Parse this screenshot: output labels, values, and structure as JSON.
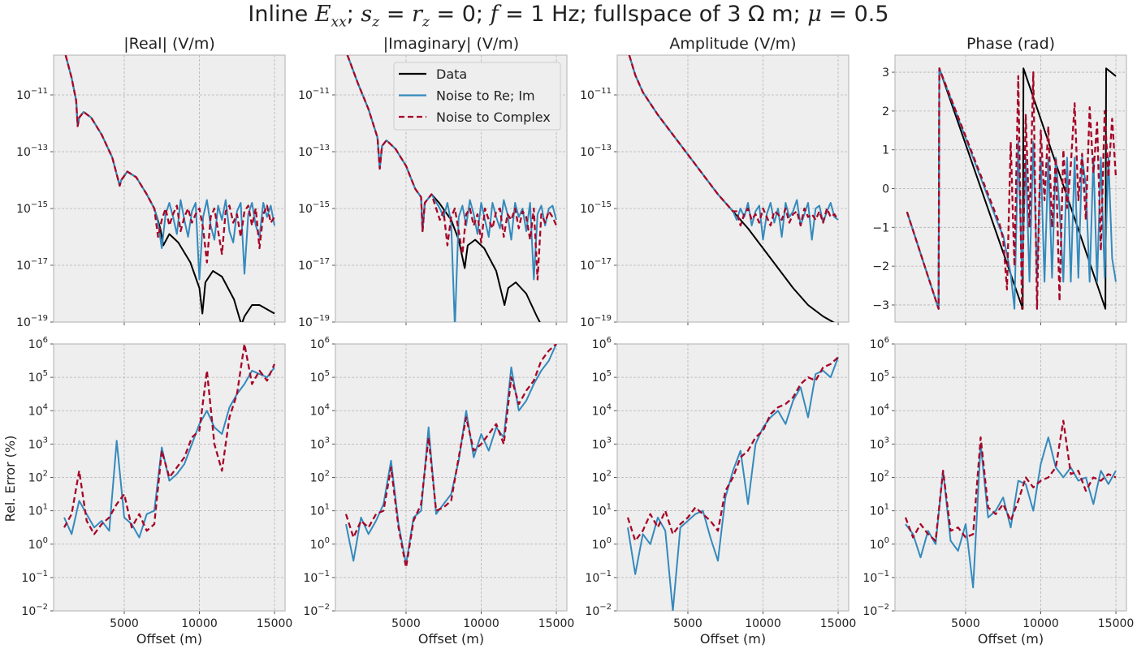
{
  "figure": {
    "title_parts": [
      {
        "t": "Inline "
      },
      {
        "t": "E",
        "i": 1
      },
      {
        "t": "xx",
        "sub": 1,
        "i": 1
      },
      {
        "t": "; "
      },
      {
        "t": "s",
        "i": 1
      },
      {
        "t": "z",
        "sub": 1,
        "i": 1
      },
      {
        "t": " = "
      },
      {
        "t": "r",
        "i": 1
      },
      {
        "t": "z",
        "sub": 1,
        "i": 1
      },
      {
        "t": " = 0; "
      },
      {
        "t": "f",
        "i": 1
      },
      {
        "t": " = 1 Hz; fullspace of 3 Ω m; "
      },
      {
        "t": "μ",
        "i": 1
      },
      {
        "t": " = 0.5"
      }
    ]
  },
  "chart_data": {
    "type": "line",
    "xlabel": "Offset (m)",
    "ylabel_bottom_left": "Rel. Error (%)",
    "xlim": [
      300,
      15700
    ],
    "xticks": [
      5000,
      10000,
      15000
    ],
    "xtick_labels": [
      "5000",
      "10000",
      "15000"
    ],
    "colors": {
      "data": "#000000",
      "reim": "#348abd",
      "complex": "#a60628",
      "bg": "#eeeeee",
      "grid": "#b2b2b2"
    },
    "legend": {
      "location": "top-right of |Imaginary| panel",
      "entries": [
        "Data",
        "Noise to Re; Im",
        "Noise to Complex"
      ]
    },
    "top_log_yticks": [
      -11,
      -13,
      -15,
      -17,
      -19
    ],
    "bottom_log_yticks": [
      -2,
      -1,
      0,
      1,
      2,
      3,
      4,
      5,
      6
    ],
    "phase_yticks": [
      3,
      2,
      1,
      0,
      -1,
      -2,
      -3
    ],
    "panels_top": [
      {
        "title": "|Real| (V/m)",
        "yscale": "log",
        "ylim_log10": [
          -19,
          -9.6
        ],
        "data": {
          "x": [
            1100,
            1500,
            1800,
            1900,
            2000,
            2300,
            2800,
            3500,
            4200,
            4700,
            4800,
            5200,
            5800,
            6500,
            7000,
            7400,
            7600,
            8000,
            8600,
            9400,
            10000,
            10200,
            10400,
            10900,
            11500,
            12300,
            12800,
            13000,
            13500,
            14000,
            15000
          ],
          "y_log10": [
            -9.6,
            -10.4,
            -11.2,
            -12.1,
            -11.8,
            -11.6,
            -11.8,
            -12.4,
            -13.2,
            -14.2,
            -14.0,
            -13.7,
            -13.9,
            -14.5,
            -15.0,
            -15.7,
            -16.3,
            -15.9,
            -16.2,
            -16.9,
            -17.8,
            -18.7,
            -17.6,
            -17.2,
            -17.4,
            -18.2,
            -19.1,
            -18.8,
            -18.4,
            -18.4,
            -18.7
          ]
        },
        "noise_start": 7000,
        "noise_x0": 7250,
        "noise_dx": 250,
        "reim_y_log10": [
          -15.5,
          -16.4,
          -15.2,
          -14.8,
          -15.3,
          -15.9,
          -14.7,
          -15.4,
          -16.0,
          -15.1,
          -14.8,
          -17.5,
          -15.3,
          -14.7,
          -15.6,
          -16.1,
          -14.9,
          -15.4,
          -14.7,
          -15.8,
          -16.2,
          -15.1,
          -14.8,
          -17.3,
          -15.2,
          -14.8,
          -15.6,
          -16.0,
          -14.8,
          -15.3,
          -14.9,
          -15.6
        ],
        "complex_y_log10": [
          -16.0,
          -15.4,
          -15.0,
          -15.6,
          -15.2,
          -14.9,
          -15.8,
          -15.3,
          -15.0,
          -15.5,
          -15.2,
          -15.0,
          -15.7,
          -16.9,
          -15.3,
          -15.0,
          -15.8,
          -16.6,
          -15.1,
          -14.9,
          -15.5,
          -15.2,
          -16.0,
          -15.1,
          -14.9,
          -15.6,
          -15.0,
          -16.4,
          -15.2,
          -14.9,
          -15.5,
          -15.3
        ]
      },
      {
        "title": "|Imaginary| (V/m)",
        "yscale": "log",
        "ylim_log10": [
          -19,
          -9.6
        ],
        "data": {
          "x": [
            1100,
            1800,
            2500,
            3100,
            3250,
            3400,
            3700,
            4300,
            5000,
            5600,
            6000,
            6100,
            6250,
            6700,
            7200,
            8000,
            8500,
            8900,
            9100,
            9600,
            10200,
            11000,
            11550,
            11800,
            12300,
            13000,
            13700,
            14000
          ],
          "y_log10": [
            -9.6,
            -10.6,
            -11.5,
            -12.5,
            -13.6,
            -12.8,
            -12.6,
            -12.9,
            -13.5,
            -14.3,
            -14.6,
            -15.8,
            -14.8,
            -14.5,
            -14.8,
            -15.4,
            -16.1,
            -17.1,
            -16.3,
            -16.1,
            -16.4,
            -17.2,
            -18.4,
            -17.8,
            -17.6,
            -18.0,
            -18.8,
            -19.1
          ]
        },
        "noise_start": 7000,
        "noise_x0": 7250,
        "noise_dx": 250,
        "reim_y_log10": [
          -15.0,
          -15.3,
          -14.8,
          -15.5,
          -19.2,
          -15.3,
          -14.9,
          -15.6,
          -14.7,
          -15.2,
          -15.9,
          -14.8,
          -15.4,
          -16.0,
          -14.8,
          -15.3,
          -15.7,
          -14.7,
          -15.2,
          -16.1,
          -14.8,
          -15.3,
          -15.0,
          -15.8,
          -14.8,
          -17.5,
          -15.2,
          -14.9,
          -15.6,
          -15.0,
          -14.9,
          -15.4
        ],
        "complex_y_log10": [
          -15.4,
          -15.1,
          -16.3,
          -15.3,
          -15.0,
          -15.8,
          -16.6,
          -15.2,
          -15.0,
          -15.6,
          -15.2,
          -16.2,
          -15.0,
          -15.4,
          -15.7,
          -15.1,
          -15.0,
          -16.0,
          -15.2,
          -15.4,
          -15.0,
          -15.7,
          -15.1,
          -15.3,
          -16.1,
          -15.0,
          -17.5,
          -15.2,
          -15.5,
          -15.1,
          -15.3,
          -15.6
        ]
      },
      {
        "title": "Amplitude (V/m)",
        "yscale": "log",
        "ylim_log10": [
          -19,
          -9.6
        ],
        "data": {
          "x": [
            1100,
            1500,
            2000,
            2500,
            3000,
            4000,
            5000,
            6000,
            7000,
            8000,
            9000,
            10000,
            11000,
            12000,
            13000,
            14000,
            15000
          ],
          "y_log10": [
            -9.6,
            -10.3,
            -10.9,
            -11.3,
            -11.7,
            -12.4,
            -13.1,
            -13.8,
            -14.5,
            -15.1,
            -15.7,
            -16.4,
            -17.1,
            -17.8,
            -18.4,
            -18.8,
            -19.1
          ]
        },
        "noise_start": 8000,
        "noise_x0": 8250,
        "noise_dx": 250,
        "reim_y_log10": [
          -15.4,
          -15.0,
          -15.3,
          -14.8,
          -15.6,
          -15.1,
          -14.9,
          -16.1,
          -15.2,
          -14.8,
          -15.5,
          -15.0,
          -16.0,
          -14.8,
          -15.3,
          -15.1,
          -14.7,
          -15.6,
          -15.2,
          -14.8,
          -16.1,
          -15.0,
          -14.9,
          -15.5,
          -15.1,
          -14.8,
          -15.3,
          -15.4
        ],
        "complex_y_log10": [
          -15.1,
          -15.6,
          -15.2,
          -15.0,
          -15.4,
          -15.2,
          -15.5,
          -15.0,
          -15.3,
          -15.6,
          -15.1,
          -15.2,
          -15.4,
          -15.0,
          -15.5,
          -15.2,
          -15.1,
          -15.6,
          -15.0,
          -15.3,
          -15.2,
          -15.4,
          -15.1,
          -15.5,
          -15.0,
          -15.3,
          -15.2,
          -15.4
        ]
      },
      {
        "title": "Phase (rad)",
        "yscale": "linear",
        "ylim": [
          -3.44,
          3.44
        ],
        "data": {
          "x": [
            1100,
            3200,
            3250,
            8800,
            8850,
            14300,
            14350,
            15000
          ],
          "y": [
            -0.6,
            -3.1,
            3.1,
            -3.1,
            3.1,
            -3.1,
            3.1,
            2.9
          ]
        },
        "noise_start": 7000,
        "noise_x0": 7250,
        "noise_dx": 250,
        "reim_y": [
          -1.0,
          -1.2,
          -1.7,
          -2.2,
          -3.1,
          1.2,
          -2.3,
          0.8,
          -2.4,
          1.2,
          -2.3,
          0.8,
          -2.4,
          0.8,
          -2.3,
          0.8,
          -0.5,
          -2.4,
          0.8,
          -2.4,
          0.8,
          -2.3,
          0.8,
          0.1,
          -2.4,
          0.8,
          -2.4,
          0.8,
          -2.3,
          0.8,
          -1.8,
          -2.4
        ],
        "complex_y": [
          -0.9,
          -1.3,
          -2.6,
          1.2,
          -2.0,
          2.9,
          -3.1,
          1.9,
          -1.0,
          3.0,
          -3.1,
          1.5,
          -0.3,
          1.6,
          -1.0,
          0.8,
          -2.9,
          1.0,
          -0.5,
          0.6,
          2.2,
          -0.3,
          0.9,
          -0.8,
          2.1,
          0.4,
          1.7,
          -1.6,
          2.0,
          0.3,
          1.8,
          0.3
        ]
      }
    ],
    "panels_bottom": [
      {
        "ylim_log10": [
          -2,
          6
        ],
        "x0": 1000,
        "dx": 500,
        "reim_y_log10": [
          0.8,
          0.3,
          1.3,
          0.9,
          0.5,
          0.7,
          0.4,
          3.1,
          0.8,
          0.6,
          0.2,
          0.9,
          1.0,
          2.9,
          1.9,
          2.1,
          2.4,
          3.0,
          3.6,
          4.0,
          3.5,
          3.3,
          4.1,
          4.5,
          4.8,
          5.2,
          5.1,
          5.0,
          5.3
        ],
        "complex_y_log10": [
          0.5,
          0.9,
          2.2,
          0.7,
          0.3,
          0.6,
          0.8,
          1.2,
          1.5,
          0.5,
          0.9,
          0.4,
          0.6,
          2.8,
          2.0,
          2.3,
          2.6,
          3.2,
          3.4,
          5.2,
          3.0,
          2.2,
          3.8,
          4.5,
          6.0,
          4.8,
          5.2,
          4.9,
          5.4
        ]
      },
      {
        "ylim_log10": [
          -2,
          6
        ],
        "x0": 1000,
        "dx": 500,
        "reim_y_log10": [
          0.6,
          -0.5,
          0.8,
          0.3,
          0.7,
          1.2,
          2.5,
          0.6,
          -0.6,
          0.8,
          1.0,
          3.5,
          0.9,
          1.2,
          1.5,
          2.5,
          4.0,
          2.6,
          3.3,
          2.8,
          3.5,
          3.2,
          5.3,
          4.0,
          4.3,
          4.8,
          5.2,
          5.5,
          6.0
        ],
        "complex_y_log10": [
          0.9,
          0.2,
          0.7,
          0.5,
          0.9,
          1.0,
          2.3,
          0.5,
          -0.7,
          0.7,
          1.2,
          3.2,
          1.0,
          1.1,
          1.3,
          2.6,
          3.8,
          2.8,
          3.0,
          3.3,
          3.6,
          3.0,
          5.0,
          4.2,
          4.6,
          4.9,
          5.5,
          5.8,
          6.0
        ]
      },
      {
        "ylim_log10": [
          -2,
          6
        ],
        "x0": 1000,
        "dx": 500,
        "reim_y_log10": [
          0.5,
          -0.9,
          0.3,
          0.0,
          0.8,
          0.4,
          -2.0,
          0.5,
          0.7,
          0.9,
          1.0,
          0.2,
          -0.5,
          1.4,
          2.2,
          2.8,
          1.2,
          3.0,
          3.5,
          3.8,
          4.0,
          3.6,
          4.3,
          4.7,
          3.8,
          5.1,
          5.2,
          5.0,
          5.6
        ],
        "complex_y_log10": [
          0.8,
          0.1,
          0.4,
          0.9,
          0.5,
          1.0,
          0.3,
          0.6,
          0.8,
          1.1,
          0.9,
          0.7,
          0.4,
          1.6,
          2.0,
          2.6,
          2.8,
          3.2,
          3.4,
          3.9,
          4.1,
          4.2,
          4.4,
          4.8,
          5.0,
          4.9,
          5.3,
          5.4,
          5.6
        ]
      },
      {
        "ylim_log10": [
          -2,
          6
        ],
        "x0": 1000,
        "dx": 500,
        "reim_y_log10": [
          0.6,
          0.3,
          -0.4,
          0.4,
          0.0,
          2.2,
          0.1,
          -0.2,
          0.6,
          -1.3,
          3.0,
          0.8,
          1.0,
          1.4,
          0.5,
          1.9,
          1.8,
          1.0,
          2.4,
          3.2,
          2.3,
          2.0,
          2.3,
          1.9,
          2.0,
          1.2,
          2.2,
          1.8,
          2.2
        ],
        "complex_y_log10": [
          0.8,
          0.2,
          0.6,
          0.3,
          0.1,
          2.2,
          0.4,
          0.5,
          0.2,
          0.3,
          3.2,
          1.1,
          0.9,
          1.2,
          0.7,
          1.3,
          2.0,
          1.7,
          1.9,
          2.0,
          2.3,
          3.7,
          2.1,
          2.2,
          1.6,
          2.0,
          1.9,
          2.1,
          2.0
        ]
      }
    ]
  }
}
